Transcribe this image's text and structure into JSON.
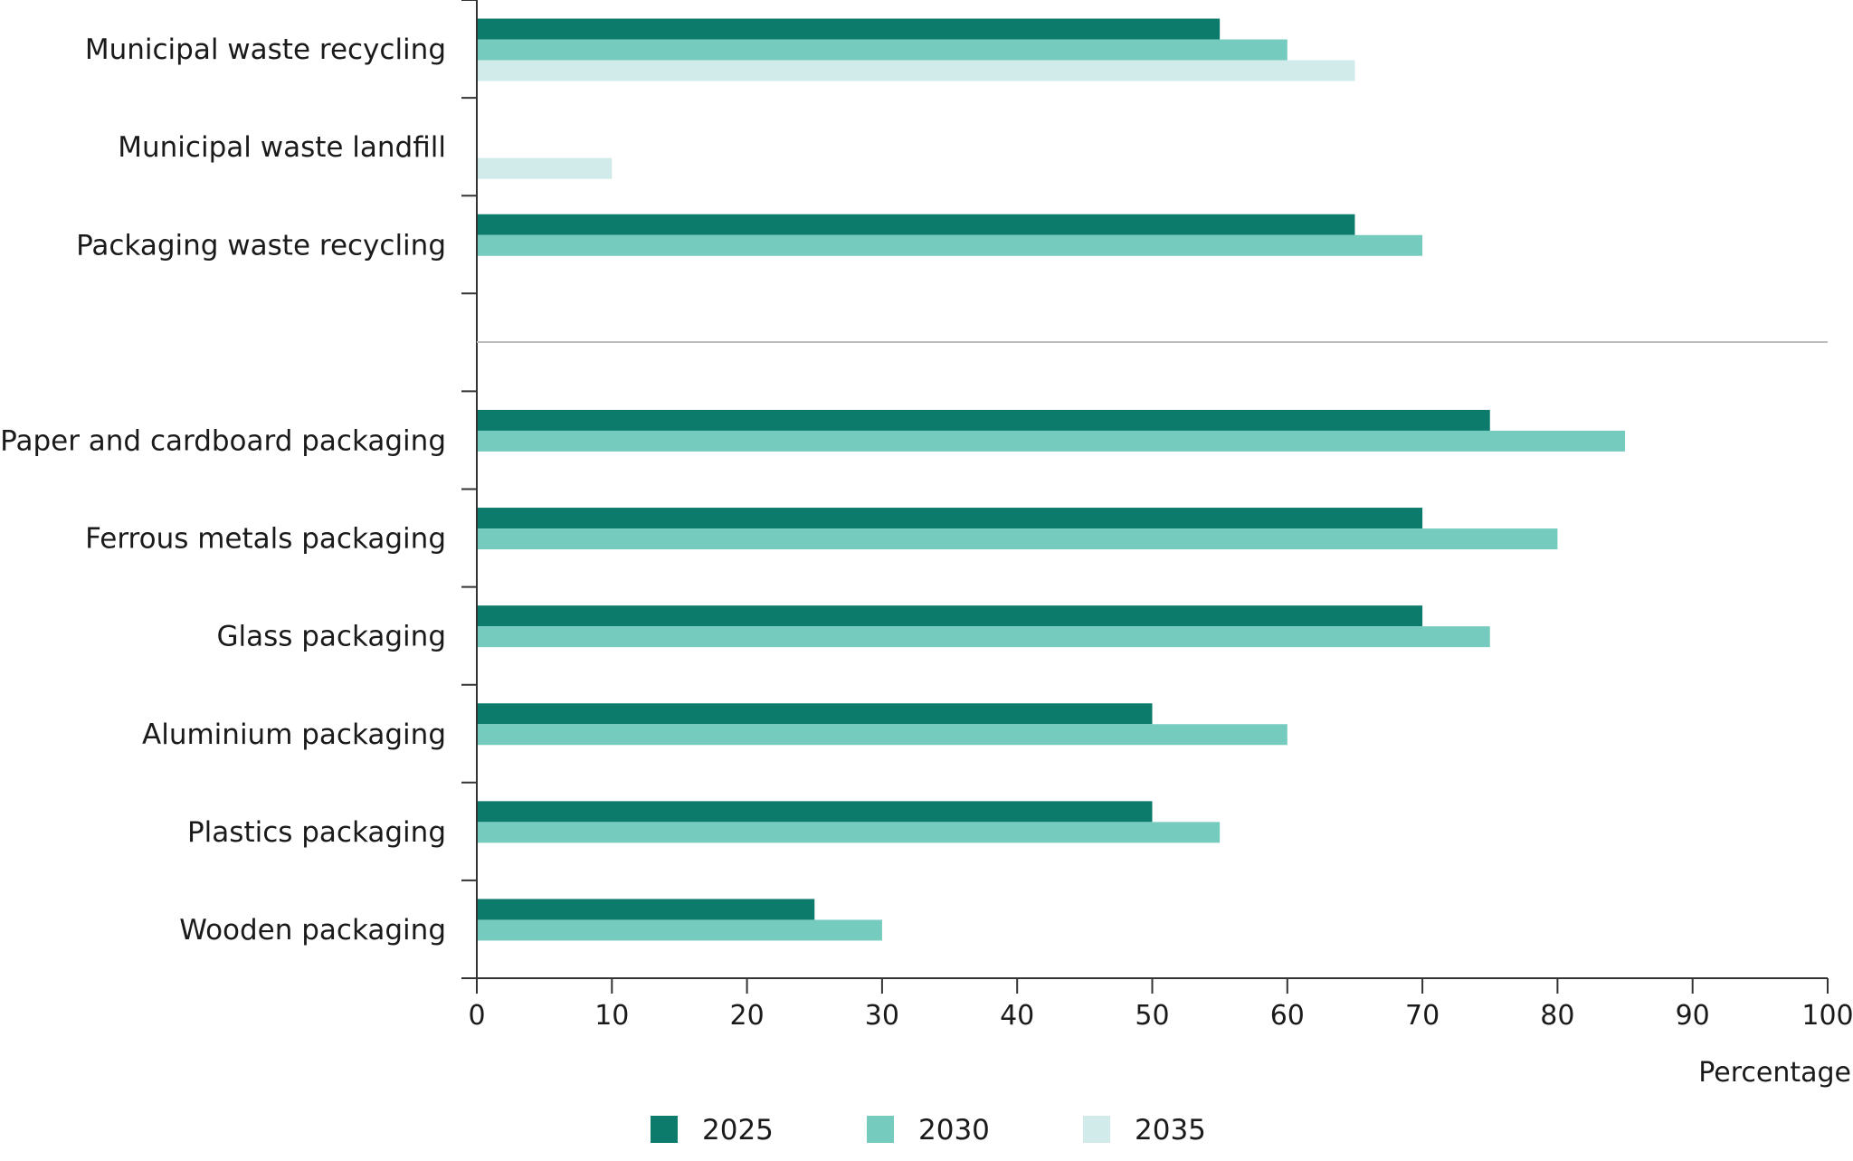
{
  "chart_data": {
    "type": "bar",
    "orientation": "horizontal",
    "categories": [
      "Municipal waste recycling",
      "Municipal waste landfill",
      "Packaging waste recycling",
      "",
      "Paper and cardboard packaging",
      "Ferrous metals packaging",
      "Glass packaging",
      "Aluminium packaging",
      "Plastics packaging",
      "Wooden packaging"
    ],
    "series": [
      {
        "name": "2025",
        "color": "#0d7b6b",
        "values": [
          55,
          null,
          65,
          null,
          75,
          70,
          70,
          50,
          50,
          25
        ]
      },
      {
        "name": "2030",
        "color": "#76cbbf",
        "values": [
          60,
          null,
          70,
          null,
          85,
          80,
          75,
          60,
          55,
          30
        ]
      },
      {
        "name": "2035",
        "color": "#d0ebe9",
        "values": [
          65,
          10,
          null,
          null,
          null,
          null,
          null,
          null,
          null,
          null
        ]
      }
    ],
    "xlabel": "Percentage",
    "xlim": [
      0,
      100
    ],
    "xticks": [
      0,
      10,
      20,
      30,
      40,
      50,
      60,
      70,
      80,
      90,
      100
    ],
    "separator_after": "Packaging waste recycling",
    "legend_position": "bottom",
    "grid": false
  }
}
